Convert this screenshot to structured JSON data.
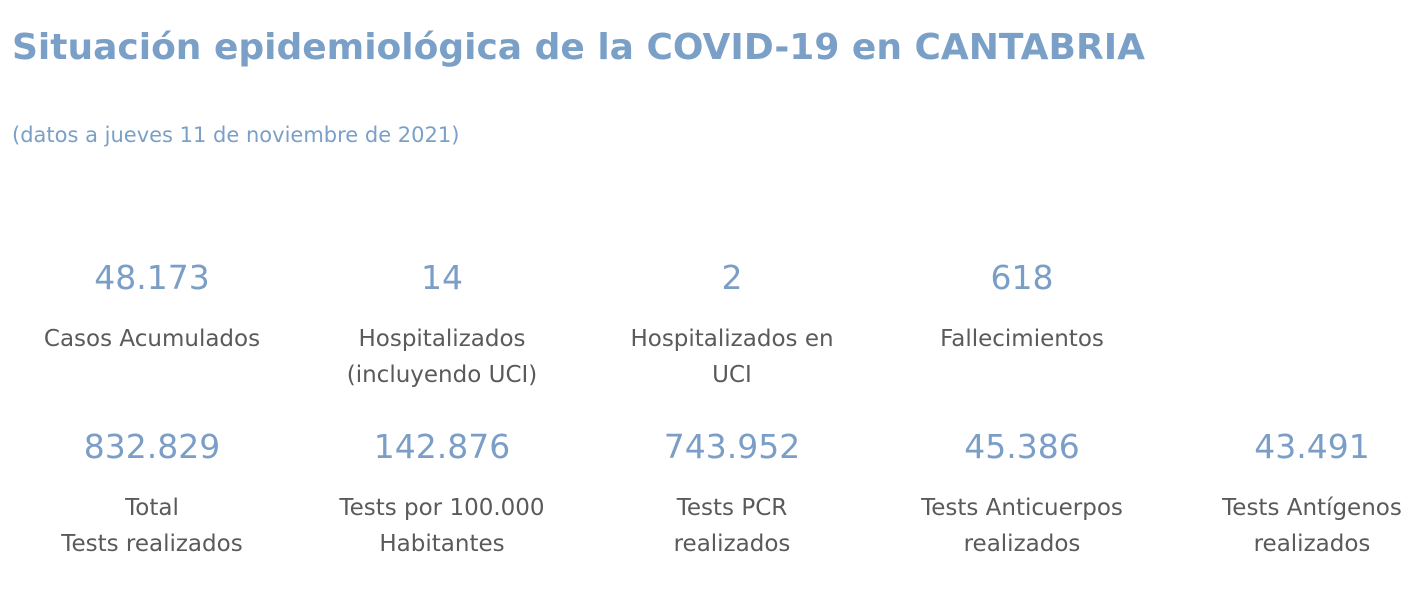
{
  "header": {
    "title": "Situación epidemiológica de la COVID-19 en CANTABRIA",
    "subtitle": "(datos a jueves 11 de noviembre de 2021)"
  },
  "stats_row1": [
    {
      "value": "48.173",
      "label": "Casos Acumulados"
    },
    {
      "value": "14",
      "label": "Hospitalizados\n(incluyendo UCI)"
    },
    {
      "value": "2",
      "label": "Hospitalizados en\nUCI"
    },
    {
      "value": "618",
      "label": "Fallecimientos"
    }
  ],
  "stats_row2": [
    {
      "value": "832.829",
      "label": "Total\nTests realizados"
    },
    {
      "value": "142.876",
      "label": "Tests por 100.000\nHabitantes"
    },
    {
      "value": "743.952",
      "label": "Tests PCR\nrealizados"
    },
    {
      "value": "45.386",
      "label": "Tests Anticuerpos\nrealizados"
    },
    {
      "value": "43.491",
      "label": "Tests Antígenos\nrealizados"
    }
  ]
}
